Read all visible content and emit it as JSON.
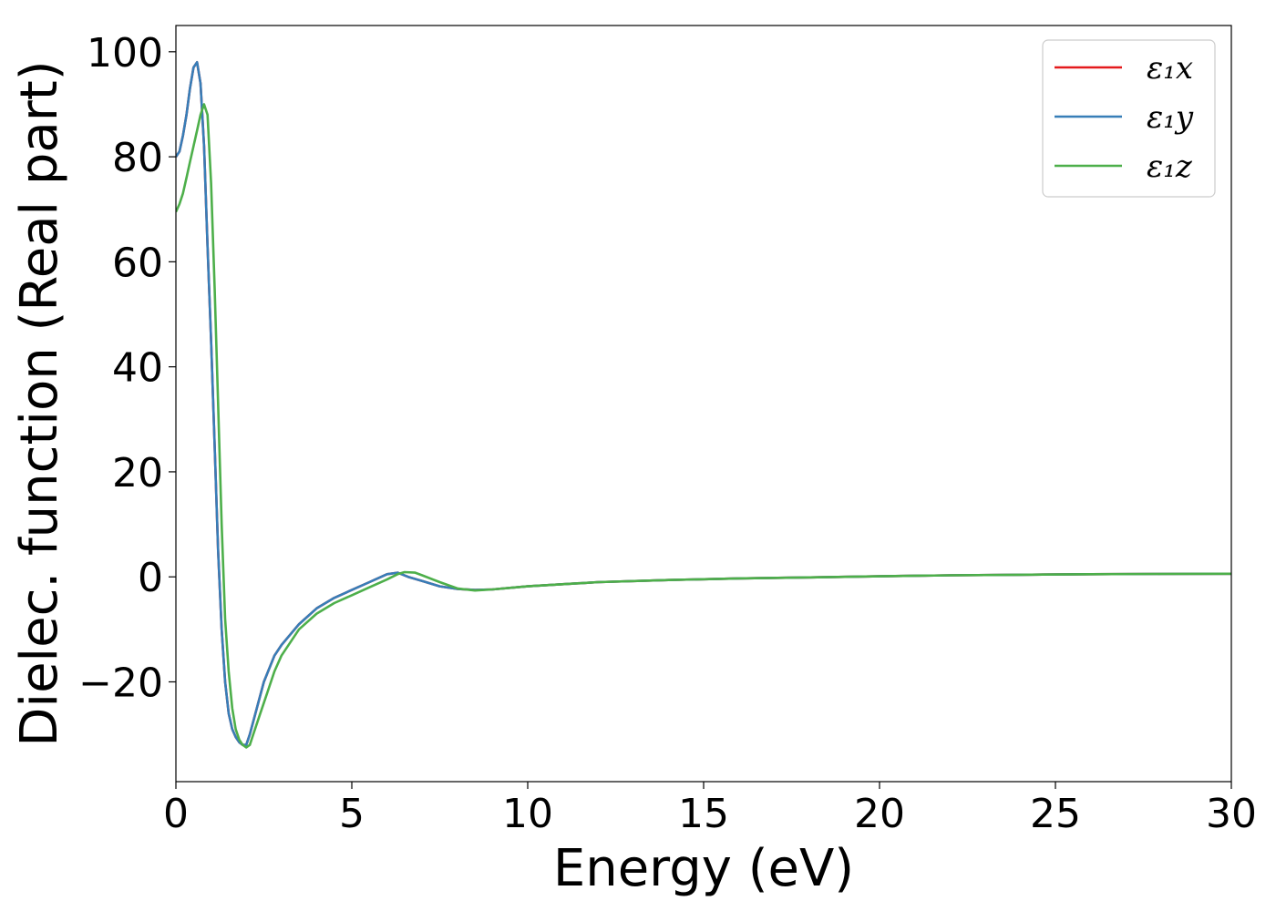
{
  "chart_data": {
    "type": "line",
    "title": "",
    "xlabel": "Energy (eV)",
    "ylabel": "Dielec. function (Real part)",
    "xlim": [
      0,
      30
    ],
    "ylim": [
      -39,
      105
    ],
    "xticks": [
      0,
      5,
      10,
      15,
      20,
      25,
      30
    ],
    "xtick_labels": [
      "0",
      "5",
      "10",
      "15",
      "20",
      "25",
      "30"
    ],
    "yticks": [
      -20,
      0,
      20,
      40,
      60,
      80,
      100
    ],
    "ytick_labels": [
      "−20",
      "0",
      "20",
      "40",
      "60",
      "80",
      "100"
    ],
    "grid": false,
    "legend_position": "top-right",
    "series": [
      {
        "name": "ε₁x",
        "color": "#e41a1c",
        "x": [
          0,
          0.1,
          0.2,
          0.3,
          0.4,
          0.5,
          0.6,
          0.7,
          0.8,
          0.9,
          1.0,
          1.1,
          1.2,
          1.3,
          1.4,
          1.5,
          1.6,
          1.7,
          1.8,
          1.9,
          2.0,
          2.1,
          2.3,
          2.5,
          2.8,
          3.0,
          3.5,
          4.0,
          4.5,
          5.0,
          5.5,
          6.0,
          6.3,
          6.6,
          7.0,
          7.5,
          8.0,
          8.5,
          9.0,
          10,
          12,
          14,
          16,
          18,
          20,
          22,
          24,
          26,
          28,
          30
        ],
        "y": [
          80,
          81,
          84,
          88,
          93,
          97,
          98,
          94,
          82,
          63,
          45,
          25,
          5,
          -10,
          -20,
          -26,
          -29,
          -30.5,
          -31.5,
          -32,
          -32,
          -30,
          -25,
          -20,
          -15,
          -13,
          -9,
          -6,
          -4,
          -2.5,
          -1,
          0.5,
          0.8,
          0,
          -0.8,
          -1.8,
          -2.3,
          -2.5,
          -2.4,
          -1.8,
          -1,
          -0.6,
          -0.3,
          -0.1,
          0.1,
          0.3,
          0.4,
          0.5,
          0.55,
          0.6
        ]
      },
      {
        "name": "ε₁y",
        "color": "#377eb8",
        "x": [
          0,
          0.1,
          0.2,
          0.3,
          0.4,
          0.5,
          0.6,
          0.7,
          0.8,
          0.9,
          1.0,
          1.1,
          1.2,
          1.3,
          1.4,
          1.5,
          1.6,
          1.7,
          1.8,
          1.9,
          2.0,
          2.1,
          2.3,
          2.5,
          2.8,
          3.0,
          3.5,
          4.0,
          4.5,
          5.0,
          5.5,
          6.0,
          6.3,
          6.6,
          7.0,
          7.5,
          8.0,
          8.5,
          9.0,
          10,
          12,
          14,
          16,
          18,
          20,
          22,
          24,
          26,
          28,
          30
        ],
        "y": [
          80,
          81,
          84,
          88,
          93,
          97,
          98,
          94,
          82,
          63,
          45,
          25,
          5,
          -10,
          -20,
          -26,
          -29,
          -30.5,
          -31.5,
          -32,
          -32,
          -30,
          -25,
          -20,
          -15,
          -13,
          -9,
          -6,
          -4,
          -2.5,
          -1,
          0.5,
          0.8,
          0,
          -0.8,
          -1.8,
          -2.3,
          -2.5,
          -2.4,
          -1.8,
          -1,
          -0.6,
          -0.3,
          -0.1,
          0.1,
          0.3,
          0.4,
          0.5,
          0.55,
          0.6
        ]
      },
      {
        "name": "ε₁z",
        "color": "#4daf4a",
        "x": [
          0,
          0.1,
          0.2,
          0.3,
          0.4,
          0.5,
          0.6,
          0.7,
          0.8,
          0.9,
          1.0,
          1.1,
          1.2,
          1.3,
          1.4,
          1.5,
          1.6,
          1.7,
          1.8,
          1.9,
          2.0,
          2.1,
          2.2,
          2.4,
          2.6,
          2.8,
          3.0,
          3.5,
          4.0,
          4.5,
          5.0,
          5.5,
          6.0,
          6.3,
          6.5,
          6.8,
          7.0,
          7.5,
          8.0,
          8.5,
          9.0,
          10,
          12,
          14,
          16,
          18,
          20,
          22,
          24,
          26,
          28,
          30
        ],
        "y": [
          69.5,
          71,
          73,
          76,
          79,
          82,
          85,
          88,
          90,
          88,
          75,
          55,
          33,
          10,
          -8,
          -18,
          -25,
          -29,
          -31,
          -32,
          -32.5,
          -32,
          -30,
          -26,
          -22,
          -18,
          -15,
          -10,
          -7,
          -5,
          -3.5,
          -2,
          -0.5,
          0.5,
          0.9,
          0.8,
          0.3,
          -1,
          -2.2,
          -2.6,
          -2.4,
          -1.8,
          -1,
          -0.6,
          -0.3,
          -0.1,
          0.1,
          0.3,
          0.4,
          0.5,
          0.55,
          0.6
        ]
      }
    ]
  }
}
